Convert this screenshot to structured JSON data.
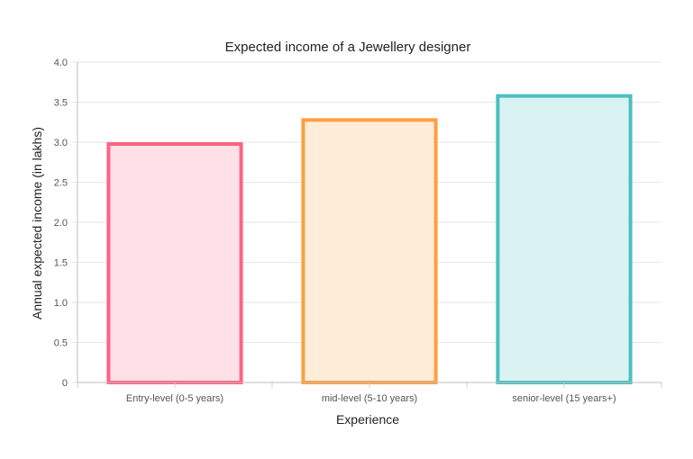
{
  "chart_data": {
    "type": "bar",
    "title": "Expected income of a Jewellery designer",
    "xlabel": "Experience",
    "ylabel": "Annual expected income (in lakhs)",
    "categories": [
      "Entry-level (0-5 years)",
      "mid-level (5-10 years)",
      "senior-level (15 years+)"
    ],
    "values": [
      3.0,
      3.3,
      3.6
    ],
    "ylim": [
      0,
      4.0
    ],
    "yticks": [
      "0",
      "0.5",
      "1.0",
      "1.5",
      "2.0",
      "2.5",
      "3.0",
      "3.5",
      "4.0"
    ],
    "grid": true,
    "legend": "none",
    "colors": {
      "border": [
        "#ff6384",
        "#ff9f40",
        "#4bc0c0"
      ],
      "fill": [
        "#ffe0e6",
        "#ffecd9",
        "#dbf2f2"
      ]
    }
  }
}
